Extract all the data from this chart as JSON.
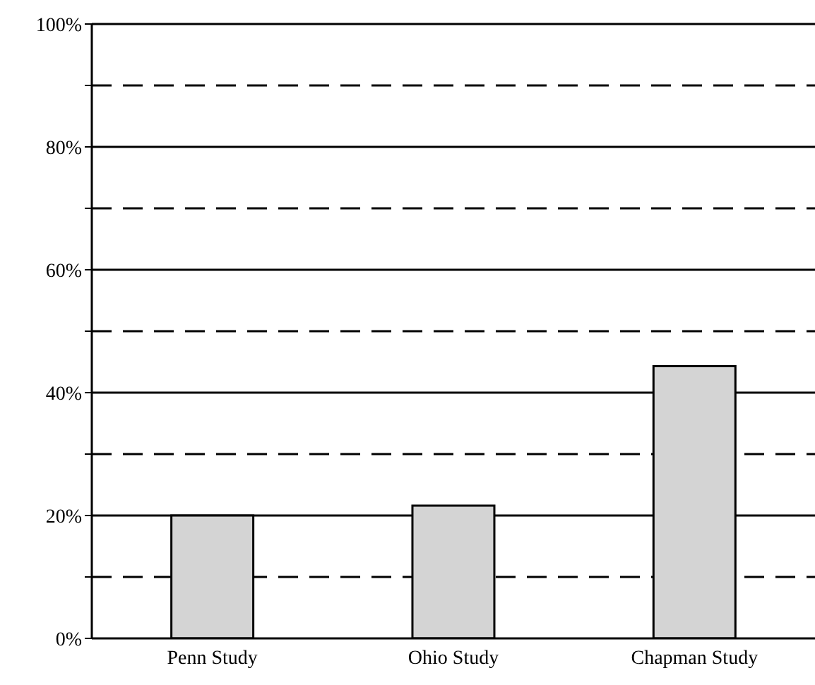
{
  "chart_data": {
    "type": "bar",
    "categories": [
      "Penn Study",
      "Ohio Study",
      "Chapman Study"
    ],
    "values": [
      20,
      21.6,
      44.3
    ],
    "color": "#d4d4d4",
    "ylim": [
      0,
      100
    ],
    "yticks": [
      {
        "value": 0,
        "label": "0%"
      },
      {
        "value": 10,
        "label": null
      },
      {
        "value": 20,
        "label": "20%"
      },
      {
        "value": 30,
        "label": null
      },
      {
        "value": 40,
        "label": "40%"
      },
      {
        "value": 50,
        "label": null
      },
      {
        "value": 60,
        "label": "60%"
      },
      {
        "value": 70,
        "label": null
      },
      {
        "value": 80,
        "label": "80%"
      },
      {
        "value": 90,
        "label": null
      },
      {
        "value": 100,
        "label": "100%"
      }
    ],
    "grid": true
  }
}
